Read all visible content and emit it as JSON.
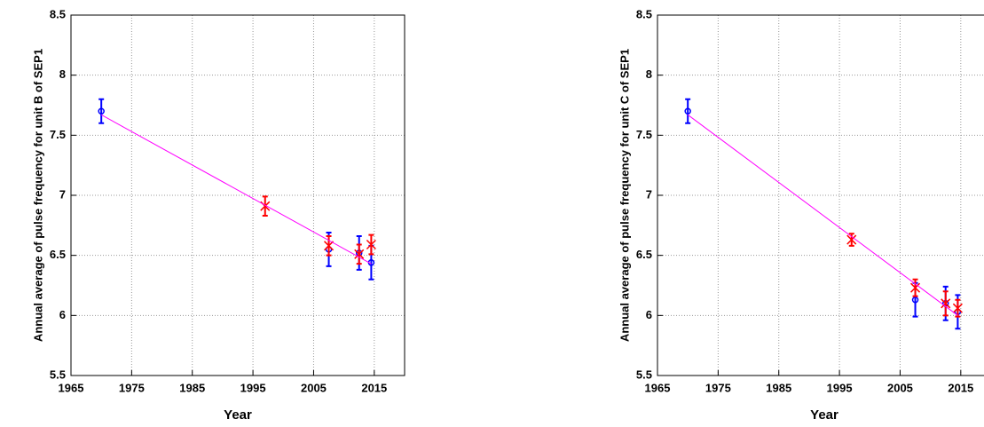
{
  "chart_data": [
    {
      "type": "scatter",
      "xlabel": "Year",
      "ylabel": "Annual average of pulse frequency for unit B of SEP1",
      "xlim": [
        1965,
        2020
      ],
      "xticks": [
        1965,
        1975,
        1985,
        1995,
        2005,
        2015
      ],
      "ylim": [
        5.5,
        8.5
      ],
      "yticks": [
        5.5,
        6,
        6.5,
        7,
        7.5,
        8,
        8.5
      ],
      "grid": true,
      "series": [
        {
          "marker": "circle",
          "color": "#0000ff",
          "x": [
            1970,
            2007.5,
            2012.5,
            2014.5
          ],
          "values": [
            7.7,
            6.55,
            6.52,
            6.44
          ],
          "errors": [
            0.1,
            0.14,
            0.14,
            0.14
          ]
        },
        {
          "marker": "x",
          "color": "#ff0000",
          "x": [
            1997,
            2007.5,
            2012.5,
            2014.5
          ],
          "values": [
            6.91,
            6.58,
            6.51,
            6.59
          ],
          "errors": [
            0.08,
            0.08,
            0.08,
            0.08
          ]
        },
        {
          "marker": "line",
          "color": "#ff00ff",
          "x": [
            1970,
            2014.5
          ],
          "values": [
            7.67,
            6.43
          ]
        }
      ]
    },
    {
      "type": "scatter",
      "xlabel": "Year",
      "ylabel": "Annual average of pulse frequency for unit C of SEP1",
      "xlim": [
        1965,
        2020
      ],
      "xticks": [
        1965,
        1975,
        1985,
        1995,
        2005,
        2015
      ],
      "ylim": [
        5.5,
        8.5
      ],
      "yticks": [
        5.5,
        6,
        6.5,
        7,
        7.5,
        8,
        8.5
      ],
      "grid": true,
      "series": [
        {
          "marker": "circle",
          "color": "#0000ff",
          "x": [
            1970,
            2007.5,
            2012.5,
            2014.5
          ],
          "values": [
            7.7,
            6.13,
            6.1,
            6.03
          ],
          "errors": [
            0.1,
            0.14,
            0.14,
            0.14
          ]
        },
        {
          "marker": "x",
          "color": "#ff0000",
          "x": [
            1997,
            2007.5,
            2012.5,
            2014.5
          ],
          "values": [
            6.63,
            6.23,
            6.1,
            6.06
          ],
          "errors": [
            0.05,
            0.07,
            0.1,
            0.07
          ]
        },
        {
          "marker": "line",
          "color": "#ff00ff",
          "x": [
            1970,
            2014.5
          ],
          "values": [
            7.67,
            6.0
          ]
        }
      ]
    }
  ]
}
